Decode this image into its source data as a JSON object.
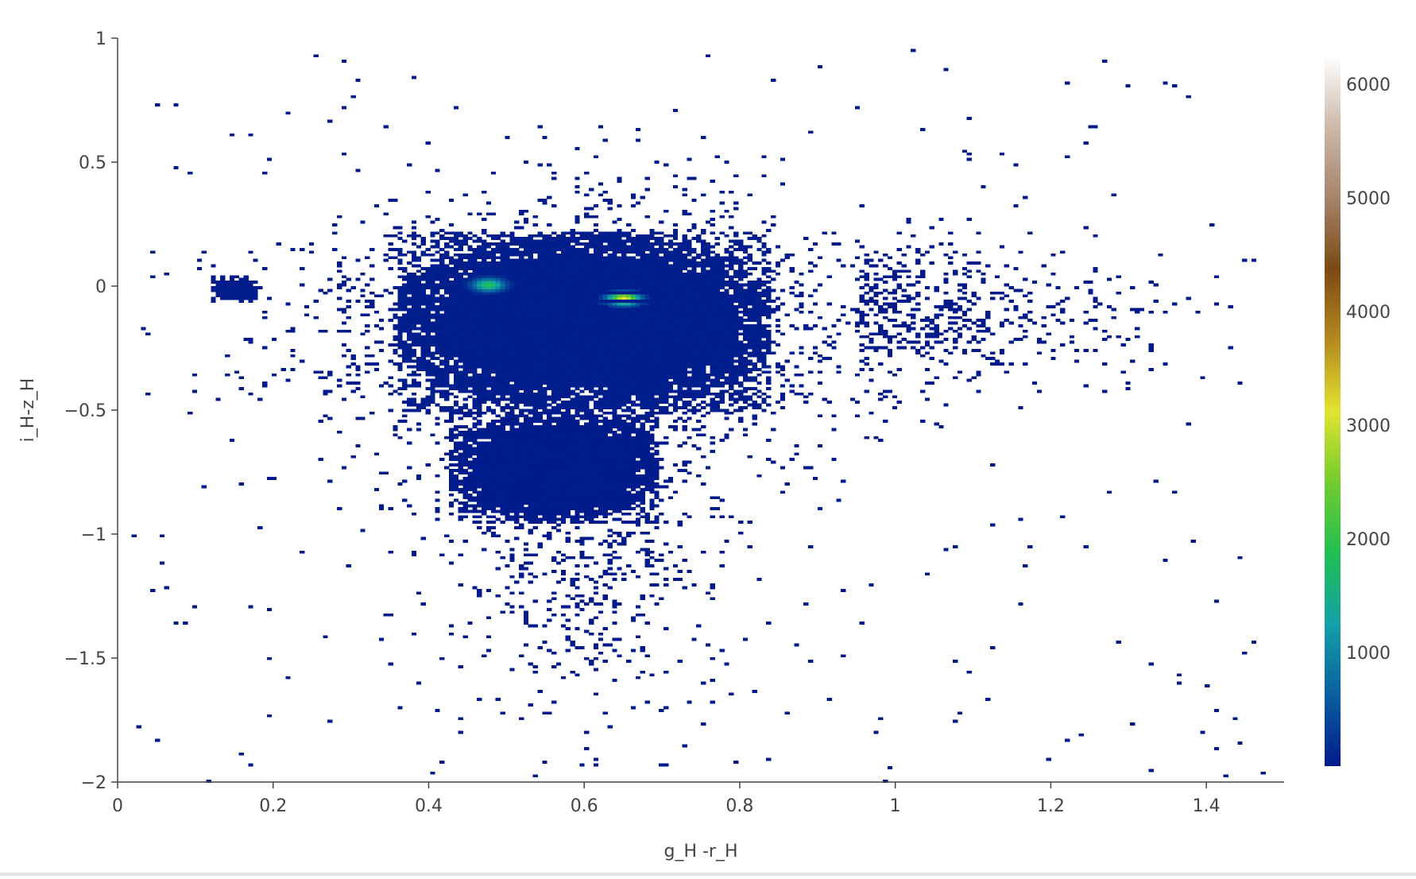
{
  "chart_data": {
    "type": "heatmap",
    "title": "",
    "xlabel": "g_H -r_H",
    "ylabel": "i_H-z_H",
    "xlim": [
      0,
      1.5
    ],
    "ylim": [
      -2,
      1
    ],
    "x_ticks": [
      0,
      0.2,
      0.4,
      0.6,
      0.8,
      1,
      1.2,
      1.4
    ],
    "x_tick_labels": [
      "0",
      "0.2",
      "0.4",
      "0.6",
      "0.8",
      "1",
      "1.2",
      "1.4"
    ],
    "y_ticks": [
      1,
      0.5,
      0,
      -0.5,
      -1,
      -1.5,
      -2
    ],
    "y_tick_labels": [
      "1",
      "0.5",
      "0",
      "−0.5",
      "−1",
      "−1.5",
      "−2"
    ],
    "grid": false,
    "bin_size": [
      0.006,
      0.011
    ],
    "colorbar": {
      "range": [
        1,
        6250
      ],
      "ticks": [
        1000,
        2000,
        3000,
        4000,
        5000,
        6000
      ],
      "tick_labels": [
        "1000",
        "2000",
        "3000",
        "4000",
        "5000",
        "6000"
      ],
      "colorscale": "gist_earth",
      "colors": [
        "#001a8c",
        "#0a5fa0",
        "#13a0a8",
        "#20c050",
        "#73cc2c",
        "#e3e331",
        "#b4891e",
        "#7a4a14",
        "#a6846a",
        "#cdb9aa",
        "#ffffff"
      ]
    },
    "peaks": [
      {
        "x": 0.475,
        "y": 0.01,
        "count": 1900
      },
      {
        "x": 0.65,
        "y": -0.055,
        "count": 3100
      }
    ],
    "dense_regions": [
      {
        "x_range": [
          0.36,
          0.84
        ],
        "y_range": [
          -0.5,
          0.22
        ],
        "count": 40
      },
      {
        "x_range": [
          0.12,
          0.18
        ],
        "y_range": [
          -0.06,
          0.04
        ],
        "count": 20
      },
      {
        "x_range": [
          0.43,
          0.7
        ],
        "y_range": [
          -0.95,
          -0.5
        ],
        "count": 12
      }
    ],
    "sparse_region": {
      "x_range": [
        0.02,
        1.48
      ],
      "y_range": [
        -2,
        1
      ],
      "count": 1
    }
  }
}
